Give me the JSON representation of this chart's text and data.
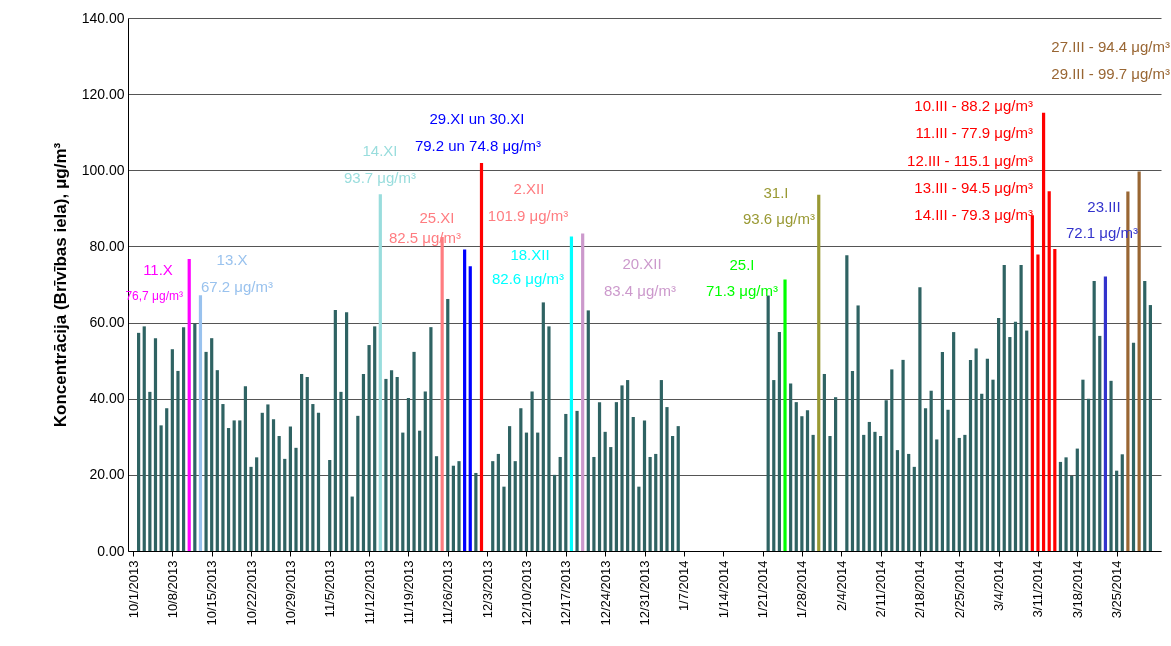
{
  "chart_data": {
    "type": "bar",
    "ylabel": "Koncentrācija (Brīvības iela), μg/m³",
    "x": [
      "2013-10-02",
      "2013-10-03",
      "2013-10-04",
      "2013-10-05",
      "2013-10-06",
      "2013-10-07",
      "2013-10-08",
      "2013-10-09",
      "2013-10-10",
      "2013-10-11",
      "2013-10-12",
      "2013-10-13",
      "2013-10-14",
      "2013-10-15",
      "2013-10-16",
      "2013-10-17",
      "2013-10-18",
      "2013-10-19",
      "2013-10-20",
      "2013-10-21",
      "2013-10-22",
      "2013-10-23",
      "2013-10-24",
      "2013-10-25",
      "2013-10-26",
      "2013-10-27",
      "2013-10-28",
      "2013-10-29",
      "2013-10-30",
      "2013-10-31",
      "2013-11-01",
      "2013-11-02",
      "2013-11-03",
      "2013-11-04",
      "2013-11-05",
      "2013-11-06",
      "2013-11-07",
      "2013-11-08",
      "2013-11-09",
      "2013-11-10",
      "2013-11-11",
      "2013-11-12",
      "2013-11-13",
      "2013-11-14",
      "2013-11-15",
      "2013-11-16",
      "2013-11-17",
      "2013-11-18",
      "2013-11-19",
      "2013-11-20",
      "2013-11-21",
      "2013-11-22",
      "2013-11-23",
      "2013-11-24",
      "2013-11-25",
      "2013-11-26",
      "2013-11-27",
      "2013-11-28",
      "2013-11-29",
      "2013-11-30",
      "2013-12-01",
      "2013-12-02",
      "2013-12-03",
      "2013-12-04",
      "2013-12-05",
      "2013-12-06",
      "2013-12-07",
      "2013-12-08",
      "2013-12-09",
      "2013-12-10",
      "2013-12-11",
      "2013-12-12",
      "2013-12-13",
      "2013-12-14",
      "2013-12-15",
      "2013-12-16",
      "2013-12-17",
      "2013-12-18",
      "2013-12-19",
      "2013-12-20",
      "2013-12-21",
      "2013-12-22",
      "2013-12-23",
      "2013-12-24",
      "2013-12-25",
      "2013-12-26",
      "2013-12-27",
      "2013-12-28",
      "2013-12-29",
      "2013-12-30",
      "2013-12-31",
      "2014-01-01",
      "2014-01-02",
      "2014-01-03",
      "2014-01-04",
      "2014-01-05",
      "2014-01-06",
      "2014-01-07",
      "2014-01-08",
      "2014-01-09",
      "2014-01-10",
      "2014-01-11",
      "2014-01-12",
      "2014-01-13",
      "2014-01-14",
      "2014-01-15",
      "2014-01-16",
      "2014-01-17",
      "2014-01-18",
      "2014-01-19",
      "2014-01-20",
      "2014-01-21",
      "2014-01-22",
      "2014-01-23",
      "2014-01-24",
      "2014-01-25",
      "2014-01-26",
      "2014-01-27",
      "2014-01-28",
      "2014-01-29",
      "2014-01-30",
      "2014-01-31",
      "2014-02-01",
      "2014-02-02",
      "2014-02-03",
      "2014-02-04",
      "2014-02-05",
      "2014-02-06",
      "2014-02-07",
      "2014-02-08",
      "2014-02-09",
      "2014-02-10",
      "2014-02-11",
      "2014-02-12",
      "2014-02-13",
      "2014-02-14",
      "2014-02-15",
      "2014-02-16",
      "2014-02-17",
      "2014-02-18",
      "2014-02-19",
      "2014-02-20",
      "2014-02-21",
      "2014-02-22",
      "2014-02-23",
      "2014-02-24",
      "2014-02-25",
      "2014-02-26",
      "2014-02-27",
      "2014-02-28",
      "2014-03-01",
      "2014-03-02",
      "2014-03-03",
      "2014-03-04",
      "2014-03-05",
      "2014-03-06",
      "2014-03-07",
      "2014-03-08",
      "2014-03-09",
      "2014-03-10",
      "2014-03-11",
      "2014-03-12",
      "2014-03-13",
      "2014-03-14",
      "2014-03-15",
      "2014-03-16",
      "2014-03-17",
      "2014-03-18",
      "2014-03-19",
      "2014-03-20",
      "2014-03-21",
      "2014-03-22",
      "2014-03-23",
      "2014-03-24",
      "2014-03-25",
      "2014-03-26",
      "2014-03-27",
      "2014-03-28",
      "2014-03-29",
      "2014-03-30",
      "2014-03-31"
    ],
    "values": [
      57.3,
      59.0,
      41.8,
      55.9,
      33.0,
      37.5,
      53.0,
      47.3,
      58.8,
      76.7,
      59.7,
      67.2,
      52.3,
      55.9,
      47.5,
      38.6,
      32.3,
      34.3,
      34.3,
      43.3,
      22.1,
      24.6,
      36.3,
      38.5,
      34.6,
      30.2,
      24.2,
      32.7,
      27.1,
      46.5,
      45.7,
      38.6,
      36.3,
      null,
      23.9,
      63.3,
      41.8,
      62.7,
      14.3,
      35.5,
      46.5,
      54.1,
      59.0,
      93.7,
      45.2,
      47.5,
      45.7,
      31.1,
      40.2,
      52.3,
      31.6,
      41.9,
      58.8,
      24.9,
      82.5,
      66.2,
      22.4,
      23.6,
      79.2,
      74.8,
      20.5,
      101.9,
      null,
      23.6,
      25.5,
      16.9,
      32.8,
      23.6,
      37.5,
      31.1,
      41.9,
      31.1,
      65.3,
      59.0,
      20.0,
      24.7,
      36.0,
      82.6,
      36.8,
      83.4,
      63.2,
      24.7,
      39.1,
      31.3,
      27.3,
      39.1,
      43.5,
      44.9,
      35.2,
      16.9,
      34.3,
      24.7,
      25.5,
      44.9,
      37.8,
      30.2,
      32.8,
      null,
      null,
      null,
      null,
      null,
      null,
      null,
      null,
      null,
      null,
      null,
      null,
      null,
      null,
      null,
      67.1,
      44.9,
      57.5,
      71.3,
      44.0,
      39.1,
      35.4,
      37.0,
      30.5,
      93.6,
      46.5,
      30.2,
      40.4,
      null,
      77.7,
      47.3,
      64.5,
      30.5,
      33.9,
      31.3,
      30.2,
      39.6,
      47.7,
      26.5,
      50.2,
      25.5,
      22.1,
      69.3,
      37.5,
      42.1,
      29.3,
      52.3,
      37.1,
      57.5,
      29.7,
      30.5,
      50.2,
      53.2,
      41.3,
      50.5,
      45.0,
      61.2,
      75.1,
      56.2,
      60.2,
      75.1,
      57.9,
      88.2,
      77.9,
      115.1,
      94.5,
      79.3,
      23.4,
      24.6,
      19.7,
      26.9,
      45.0,
      40.0,
      70.9,
      56.5,
      72.1,
      44.7,
      21.1,
      25.4,
      94.4,
      54.7,
      99.7,
      70.9,
      64.6
    ],
    "colors": [
      "#2f6363",
      "#2f6363",
      "#2f6363",
      "#2f6363",
      "#2f6363",
      "#2f6363",
      "#2f6363",
      "#2f6363",
      "#2f6363",
      "#ff00ff",
      "#2f6363",
      "#99c2ee",
      "#2f6363",
      "#2f6363",
      "#2f6363",
      "#2f6363",
      "#2f6363",
      "#2f6363",
      "#2f6363",
      "#2f6363",
      "#2f6363",
      "#2f6363",
      "#2f6363",
      "#2f6363",
      "#2f6363",
      "#2f6363",
      "#2f6363",
      "#2f6363",
      "#2f6363",
      "#2f6363",
      "#2f6363",
      "#2f6363",
      "#2f6363",
      "#2f6363",
      "#2f6363",
      "#2f6363",
      "#2f6363",
      "#2f6363",
      "#2f6363",
      "#2f6363",
      "#2f6363",
      "#2f6363",
      "#2f6363",
      "#99dddd",
      "#2f6363",
      "#2f6363",
      "#2f6363",
      "#2f6363",
      "#2f6363",
      "#2f6363",
      "#2f6363",
      "#2f6363",
      "#2f6363",
      "#2f6363",
      "#ff7c80",
      "#2f6363",
      "#2f6363",
      "#2f6363",
      "#0000ff",
      "#0000ff",
      "#2f6363",
      "#ff0000",
      "#2f6363",
      "#2f6363",
      "#2f6363",
      "#2f6363",
      "#2f6363",
      "#2f6363",
      "#2f6363",
      "#2f6363",
      "#2f6363",
      "#2f6363",
      "#2f6363",
      "#2f6363",
      "#2f6363",
      "#2f6363",
      "#2f6363",
      "#00ffff",
      "#2f6363",
      "#cc99cc",
      "#2f6363",
      "#2f6363",
      "#2f6363",
      "#2f6363",
      "#2f6363",
      "#2f6363",
      "#2f6363",
      "#2f6363",
      "#2f6363",
      "#2f6363",
      "#2f6363",
      "#2f6363",
      "#2f6363",
      "#2f6363",
      "#2f6363",
      "#2f6363",
      "#2f6363",
      "#2f6363",
      "#2f6363",
      "#2f6363",
      "#2f6363",
      "#2f6363",
      "#2f6363",
      "#2f6363",
      "#2f6363",
      "#2f6363",
      "#2f6363",
      "#2f6363",
      "#2f6363",
      "#2f6363",
      "#2f6363",
      "#2f6363",
      "#2f6363",
      "#2f6363",
      "#2f6363",
      "#00ff00",
      "#2f6363",
      "#2f6363",
      "#2f6363",
      "#2f6363",
      "#2f6363",
      "#999933",
      "#2f6363",
      "#2f6363",
      "#2f6363",
      "#2f6363",
      "#2f6363",
      "#2f6363",
      "#2f6363",
      "#2f6363",
      "#2f6363",
      "#2f6363",
      "#2f6363",
      "#2f6363",
      "#2f6363",
      "#2f6363",
      "#2f6363",
      "#2f6363",
      "#2f6363",
      "#2f6363",
      "#2f6363",
      "#2f6363",
      "#2f6363",
      "#2f6363",
      "#2f6363",
      "#2f6363",
      "#2f6363",
      "#2f6363",
      "#2f6363",
      "#2f6363",
      "#2f6363",
      "#2f6363",
      "#2f6363",
      "#2f6363",
      "#2f6363",
      "#2f6363",
      "#2f6363",
      "#2f6363",
      "#2f6363",
      "#ff0000",
      "#ff0000",
      "#ff0000",
      "#ff0000",
      "#ff0000",
      "#2f6363",
      "#2f6363",
      "#2f6363",
      "#2f6363",
      "#2f6363",
      "#2f6363",
      "#2f6363",
      "#2f6363",
      "#3333cc",
      "#2f6363",
      "#2f6363",
      "#2f6363",
      "#996633",
      "#2f6363",
      "#996633",
      "#2f6363",
      "#2f6363"
    ],
    "xlim": [
      "2013-10-01",
      "2014-04-01"
    ],
    "xticks": [
      {
        "value": "2013-10-01",
        "label": "10/1/2013"
      },
      {
        "value": "2013-10-08",
        "label": "10/8/2013"
      },
      {
        "value": "2013-10-15",
        "label": "10/15/2013"
      },
      {
        "value": "2013-10-22",
        "label": "10/22/2013"
      },
      {
        "value": "2013-10-29",
        "label": "10/29/2013"
      },
      {
        "value": "2013-11-05",
        "label": "11/5/2013"
      },
      {
        "value": "2013-11-12",
        "label": "11/12/2013"
      },
      {
        "value": "2013-11-19",
        "label": "11/19/2013"
      },
      {
        "value": "2013-11-26",
        "label": "11/26/2013"
      },
      {
        "value": "2013-12-03",
        "label": "12/3/2013"
      },
      {
        "value": "2013-12-10",
        "label": "12/10/2013"
      },
      {
        "value": "2013-12-17",
        "label": "12/17/2013"
      },
      {
        "value": "2013-12-24",
        "label": "12/24/2013"
      },
      {
        "value": "2013-12-31",
        "label": "12/31/2013"
      },
      {
        "value": "2014-01-07",
        "label": "1/7/2014"
      },
      {
        "value": "2014-01-14",
        "label": "1/14/2014"
      },
      {
        "value": "2014-01-21",
        "label": "1/21/2014"
      },
      {
        "value": "2014-01-28",
        "label": "1/28/2014"
      },
      {
        "value": "2014-02-04",
        "label": "2/4/2014"
      },
      {
        "value": "2014-02-11",
        "label": "2/11/2014"
      },
      {
        "value": "2014-02-18",
        "label": "2/18/2014"
      },
      {
        "value": "2014-02-25",
        "label": "2/25/2014"
      },
      {
        "value": "2014-03-04",
        "label": "3/4/2014"
      },
      {
        "value": "2014-03-11",
        "label": "3/11/2014"
      },
      {
        "value": "2014-03-18",
        "label": "3/18/2014"
      },
      {
        "value": "2014-03-25",
        "label": "3/25/2014"
      }
    ],
    "ylim": [
      0,
      140
    ],
    "yticks": [
      {
        "value": 0,
        "label": "0.00"
      },
      {
        "value": 20,
        "label": "20.00"
      },
      {
        "value": 40,
        "label": "40.00"
      },
      {
        "value": 60,
        "label": "60.00"
      },
      {
        "value": 80,
        "label": "80.00"
      },
      {
        "value": 100,
        "label": "100.00"
      },
      {
        "value": 120,
        "label": "120.00"
      },
      {
        "value": 140,
        "label": "140.00"
      }
    ],
    "grid": "y",
    "annotations": [
      "11.X",
      "76,7 μg/m³",
      "13.X",
      "67.2 μg/m³",
      "14.XI",
      "93.7 μg/m³",
      "25.XI",
      "82.5 μg/m³",
      "29.XI  un  30.XI",
      "79.2 un 74.8 μg/m³",
      "2.XII",
      "101.9 μg/m³",
      "18.XII",
      "82.6 μg/m³",
      "20.XII",
      "83.4 μg/m³",
      "25.I",
      "71.3 μg/m³",
      "31.I",
      "93.6 μg/m³",
      "10.III - 88.2 μg/m³",
      "11.III - 77.9 μg/m³",
      "12.III - 115.1 μg/m³",
      "13.III - 94.5 μg/m³",
      "14.III - 79.3 μg/m³",
      "23.III",
      "72.1 μg/m³",
      "27.III -  94.4 μg/m³",
      "29.III - 99.7 μg/m³"
    ]
  }
}
